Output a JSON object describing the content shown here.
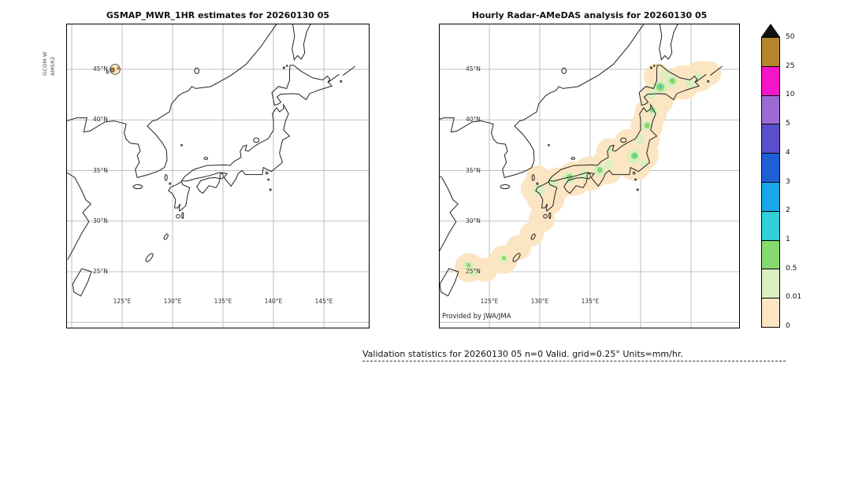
{
  "caption": {
    "text": "Validation statistics for 20260130 05  n=0 Valid. grid=0.25° Units=mm/hr."
  },
  "colorbar": {
    "units": "mm/hr",
    "labels_top_to_bottom": [
      "50",
      "25",
      "10",
      "5",
      "4",
      "3",
      "2",
      "1",
      "0.5",
      "0.01",
      "0"
    ],
    "colors_bottom_to_top": [
      "#fce5c2",
      "#d9efbf",
      "#86d96e",
      "#2fd0d8",
      "#18a8e8",
      "#1f5fd6",
      "#5a50cd",
      "#9b6bd3",
      "#f515c9",
      "#b5862b"
    ],
    "overflow_color": "#111111"
  },
  "chart_data": [
    {
      "type": "heatmap",
      "panel": "left",
      "title": "GSMAP_MWR_1HR estimates for 20260130 05",
      "side_label": [
        "GCOM-W",
        "AMSR2"
      ],
      "lat_ticks": [
        "45°N",
        "40°N",
        "35°N",
        "30°N",
        "25°N"
      ],
      "lon_ticks": [
        "125°E",
        "130°E",
        "135°E",
        "140°E",
        "145°E"
      ],
      "lon_range": [
        119.5,
        149.4
      ],
      "lat_range": [
        19.5,
        49.4
      ],
      "units": "mm/hr",
      "levels": [
        0,
        0.01,
        0.5,
        1,
        2,
        3,
        4,
        5,
        10,
        25,
        50
      ],
      "cells_format": "[lon,lat,radius_deg,band_index,outlined]",
      "cells": [
        [
          124.3,
          45.0,
          0.5,
          0,
          1
        ],
        [
          124.05,
          44.95,
          0.2,
          9,
          1
        ],
        [
          124.6,
          45.08,
          0.14,
          9,
          0
        ],
        [
          123.55,
          44.72,
          0.12,
          0,
          1
        ]
      ]
    },
    {
      "type": "heatmap",
      "panel": "right",
      "title": "Hourly Radar-AMeDAS analysis for 20260130 05",
      "credit": "Provided by JWA/JMA",
      "lat_ticks": [
        "45°N",
        "40°N",
        "35°N",
        "30°N",
        "25°N"
      ],
      "lon_ticks": [
        "125°E",
        "130°E",
        "135°E"
      ],
      "lon_range": [
        120.1,
        149.8
      ],
      "lat_range": [
        19.5,
        49.4
      ],
      "units": "mm/hr",
      "levels": [
        0,
        0.01,
        0.5,
        1,
        2,
        3,
        4,
        5,
        10,
        25,
        50
      ],
      "cells_format": "[lon,lat,radius_deg,band_index,outlined]",
      "cells": [
        [
          123.0,
          25.4,
          1.45,
          0
        ],
        [
          124.6,
          25.2,
          1.2,
          0
        ],
        [
          126.4,
          26.2,
          1.4,
          0
        ],
        [
          127.9,
          27.4,
          1.25,
          0
        ],
        [
          129.2,
          28.7,
          1.2,
          0
        ],
        [
          130.2,
          30.2,
          1.3,
          0
        ],
        [
          130.6,
          32.4,
          1.9,
          0
        ],
        [
          129.4,
          33.2,
          1.3,
          0
        ],
        [
          131.8,
          33.7,
          1.6,
          0
        ],
        [
          133.4,
          34.2,
          1.7,
          0
        ],
        [
          135.0,
          34.7,
          1.7,
          0
        ],
        [
          136.6,
          35.3,
          1.7,
          0
        ],
        [
          137.7,
          36.2,
          1.6,
          0
        ],
        [
          139.4,
          35.7,
          1.7,
          0
        ],
        [
          140.2,
          36.6,
          1.6,
          0
        ],
        [
          138.7,
          37.8,
          1.3,
          0
        ],
        [
          136.9,
          36.9,
          1.3,
          0
        ],
        [
          140.3,
          38.1,
          1.6,
          0
        ],
        [
          140.6,
          39.4,
          1.6,
          0
        ],
        [
          141.0,
          40.7,
          1.6,
          0
        ],
        [
          141.6,
          42.1,
          1.7,
          0
        ],
        [
          142.3,
          43.3,
          1.8,
          0
        ],
        [
          144.2,
          43.7,
          1.7,
          0
        ],
        [
          145.8,
          44.3,
          1.5,
          0
        ],
        [
          146.8,
          44.6,
          1.2,
          0
        ],
        [
          141.6,
          44.3,
          1.3,
          0
        ],
        [
          129.8,
          34.3,
          1.2,
          0
        ],
        [
          122.9,
          25.6,
          0.5,
          1
        ],
        [
          123.4,
          24.9,
          0.4,
          1
        ],
        [
          126.4,
          26.3,
          0.45,
          1
        ],
        [
          129.9,
          33.1,
          0.6,
          1
        ],
        [
          131.3,
          33.8,
          0.5,
          1
        ],
        [
          132.9,
          34.3,
          0.65,
          1
        ],
        [
          134.4,
          34.6,
          0.5,
          1
        ],
        [
          135.9,
          35.0,
          0.6,
          1
        ],
        [
          136.9,
          35.6,
          0.45,
          1
        ],
        [
          139.3,
          36.4,
          0.7,
          1
        ],
        [
          140.3,
          35.7,
          0.4,
          1
        ],
        [
          139.9,
          38.1,
          0.5,
          1
        ],
        [
          140.6,
          39.4,
          0.55,
          1
        ],
        [
          141.2,
          40.9,
          0.5,
          1
        ],
        [
          141.0,
          42.5,
          0.45,
          1
        ],
        [
          141.9,
          43.2,
          0.75,
          1
        ],
        [
          143.1,
          43.8,
          0.6,
          1
        ],
        [
          142.4,
          44.5,
          0.45,
          1
        ],
        [
          144.9,
          43.6,
          0.45,
          1
        ],
        [
          145.7,
          44.2,
          0.4,
          1
        ],
        [
          137.0,
          37.1,
          0.4,
          1
        ],
        [
          132.95,
          34.35,
          0.3,
          2
        ],
        [
          135.95,
          35.05,
          0.28,
          2
        ],
        [
          139.4,
          36.45,
          0.33,
          2
        ],
        [
          140.65,
          39.45,
          0.28,
          2
        ],
        [
          141.95,
          43.25,
          0.4,
          2
        ],
        [
          143.15,
          43.85,
          0.3,
          2
        ],
        [
          141.15,
          40.95,
          0.22,
          2
        ],
        [
          122.95,
          25.65,
          0.22,
          2
        ],
        [
          126.45,
          26.35,
          0.2,
          2
        ],
        [
          141.95,
          43.3,
          0.15,
          3
        ],
        [
          139.45,
          36.5,
          0.12,
          3
        ]
      ]
    }
  ]
}
